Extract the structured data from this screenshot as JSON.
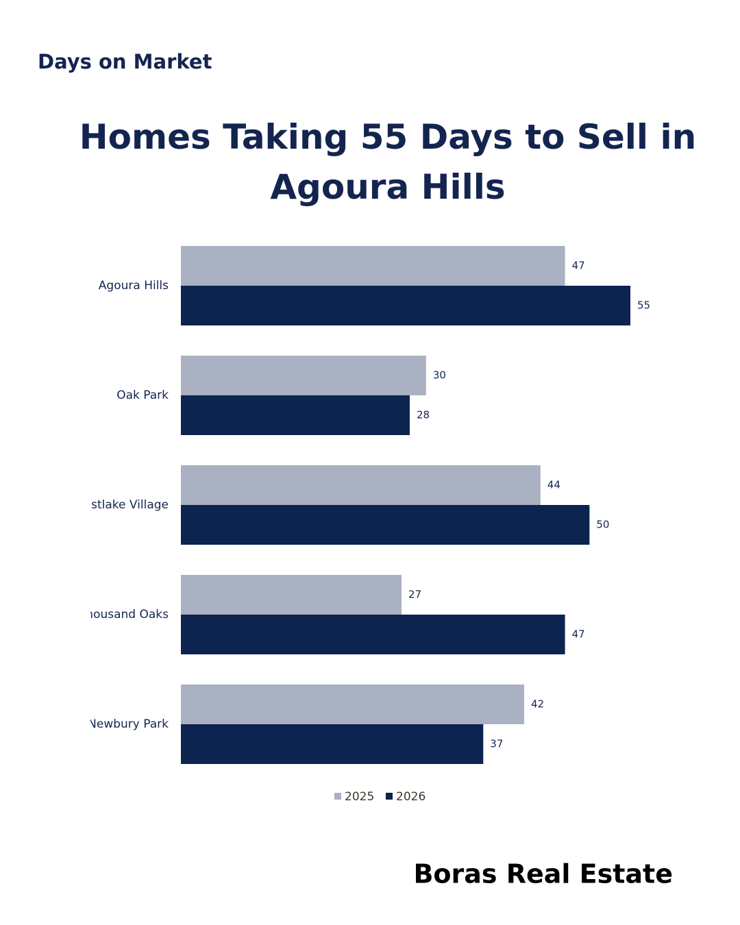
{
  "header": {
    "label": "Days on Market"
  },
  "chart_data": {
    "type": "bar",
    "orientation": "horizontal",
    "title": "Homes Taking 55 Days to Sell in Agoura Hills",
    "categories": [
      "Agoura Hills",
      "Oak Park",
      "Westlake Village",
      "Thousand Oaks",
      "Newbury Park"
    ],
    "series": [
      {
        "name": "2025",
        "color": "#a9b1c2",
        "values": [
          47,
          30,
          44,
          27,
          42
        ]
      },
      {
        "name": "2026",
        "color": "#0d2350",
        "values": [
          55,
          28,
          50,
          47,
          37
        ]
      }
    ],
    "legend": "bottom"
  },
  "footer": {
    "brand": "Boras Real Estate"
  }
}
